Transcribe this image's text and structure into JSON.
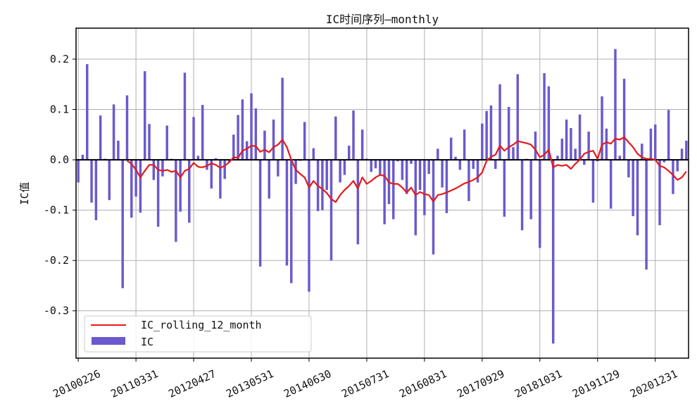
{
  "chart_data": {
    "type": "bar",
    "title": "IC时间序列—monthly",
    "xlabel": "",
    "ylabel": "IC值",
    "ylim": [
      -0.394,
      0.2615
    ],
    "xlim": [
      -0.5,
      137.5
    ],
    "grid": true,
    "legend_placement": "lower-left",
    "yticks": [
      {
        "value": 0.2,
        "label": "0.2"
      },
      {
        "value": 0.1,
        "label": "0.1"
      },
      {
        "value": 0.0,
        "label": "0.0"
      },
      {
        "value": -0.1,
        "label": "-0.1"
      },
      {
        "value": -0.2,
        "label": "-0.2"
      },
      {
        "value": -0.3,
        "label": "-0.3"
      }
    ],
    "xticks": [
      {
        "index": 0,
        "label": "20100226"
      },
      {
        "index": 13,
        "label": "20110331"
      },
      {
        "index": 26,
        "label": "20120427"
      },
      {
        "index": 39,
        "label": "20130531"
      },
      {
        "index": 52,
        "label": "20140630"
      },
      {
        "index": 65,
        "label": "20150731"
      },
      {
        "index": 78,
        "label": "20160831"
      },
      {
        "index": 91,
        "label": "20170929"
      },
      {
        "index": 104,
        "label": "20181031"
      },
      {
        "index": 117,
        "label": "20191129"
      },
      {
        "index": 130,
        "label": "20201231"
      }
    ],
    "series": [
      {
        "name": "IC",
        "kind": "bar",
        "color": "#6a5acd",
        "start_index": 0,
        "values": [
          -0.045,
          0.01,
          0.19,
          -0.085,
          -0.12,
          0.088,
          0.002,
          -0.08,
          0.11,
          0.038,
          -0.255,
          0.128,
          -0.115,
          -0.073,
          -0.105,
          0.176,
          0.071,
          -0.04,
          -0.133,
          -0.033,
          0.068,
          0.002,
          -0.163,
          -0.103,
          0.173,
          -0.125,
          0.085,
          0.008,
          0.109,
          -0.02,
          -0.057,
          0.003,
          -0.077,
          -0.038,
          -0.005,
          0.05,
          0.089,
          0.12,
          0.037,
          0.132,
          0.102,
          -0.212,
          0.058,
          -0.077,
          0.08,
          -0.033,
          0.163,
          -0.21,
          -0.245,
          -0.048,
          -0.002,
          0.075,
          -0.262,
          0.023,
          -0.102,
          -0.1,
          -0.06,
          -0.2,
          0.086,
          -0.045,
          -0.03,
          0.028,
          0.098,
          -0.168,
          0.06,
          0.002,
          -0.024,
          -0.017,
          -0.03,
          -0.128,
          -0.088,
          -0.118,
          -0.003,
          -0.04,
          -0.068,
          -0.008,
          -0.15,
          -0.06,
          -0.11,
          -0.028,
          -0.188,
          0.022,
          -0.055,
          -0.106,
          0.044,
          0.006,
          -0.02,
          0.06,
          -0.082,
          -0.018,
          -0.045,
          0.072,
          0.097,
          0.108,
          -0.018,
          0.15,
          -0.113,
          0.105,
          0.025,
          0.17,
          -0.14,
          0.002,
          -0.118,
          0.056,
          -0.175,
          0.172,
          0.146,
          -0.365,
          0.008,
          0.042,
          0.08,
          0.063,
          0.022,
          0.09,
          -0.01,
          0.056,
          -0.085,
          -0.003,
          0.126,
          0.062,
          -0.097,
          0.22,
          0.008,
          0.161,
          -0.035,
          -0.112,
          -0.15,
          0.032,
          -0.218,
          0.062,
          0.07,
          -0.13,
          -0.005,
          0.099,
          -0.068,
          -0.023,
          0.022,
          0.038
        ]
      },
      {
        "name": "IC_rolling_12_month",
        "kind": "line",
        "color": "#e41a1c",
        "start_index": 11,
        "values": [
          -0.002,
          -0.008,
          -0.02,
          -0.035,
          -0.022,
          -0.01,
          -0.01,
          -0.02,
          -0.022,
          -0.02,
          -0.024,
          -0.022,
          -0.035,
          -0.022,
          -0.018,
          -0.006,
          -0.014,
          -0.015,
          -0.012,
          -0.007,
          -0.01,
          -0.016,
          -0.012,
          -0.005,
          0.005,
          0.004,
          0.018,
          0.022,
          0.028,
          0.027,
          0.016,
          0.02,
          0.015,
          0.025,
          0.03,
          0.04,
          0.025,
          0.0,
          -0.02,
          -0.028,
          -0.035,
          -0.055,
          -0.042,
          -0.052,
          -0.058,
          -0.066,
          -0.078,
          -0.084,
          -0.07,
          -0.06,
          -0.052,
          -0.042,
          -0.057,
          -0.035,
          -0.048,
          -0.042,
          -0.035,
          -0.03,
          -0.032,
          -0.045,
          -0.048,
          -0.048,
          -0.055,
          -0.065,
          -0.055,
          -0.07,
          -0.064,
          -0.068,
          -0.07,
          -0.083,
          -0.07,
          -0.068,
          -0.065,
          -0.061,
          -0.057,
          -0.052,
          -0.047,
          -0.044,
          -0.04,
          -0.035,
          -0.025,
          -0.002,
          0.006,
          0.01,
          0.028,
          0.018,
          0.025,
          0.03,
          0.037,
          0.035,
          0.033,
          0.03,
          0.02,
          0.005,
          0.01,
          0.02,
          -0.015,
          -0.01,
          -0.012,
          -0.01,
          -0.018,
          -0.008,
          0.0,
          0.012,
          0.016,
          0.018,
          0.002,
          0.03,
          0.035,
          0.032,
          0.042,
          0.04,
          0.045,
          0.035,
          0.025,
          0.012,
          0.005,
          0.002,
          0.002,
          0.0,
          -0.012,
          -0.015,
          -0.022,
          -0.03,
          -0.04,
          -0.035,
          -0.023
        ]
      }
    ],
    "legend": [
      {
        "label": "IC_rolling_12_month",
        "kind": "line"
      },
      {
        "label": "IC",
        "kind": "patch"
      }
    ]
  }
}
